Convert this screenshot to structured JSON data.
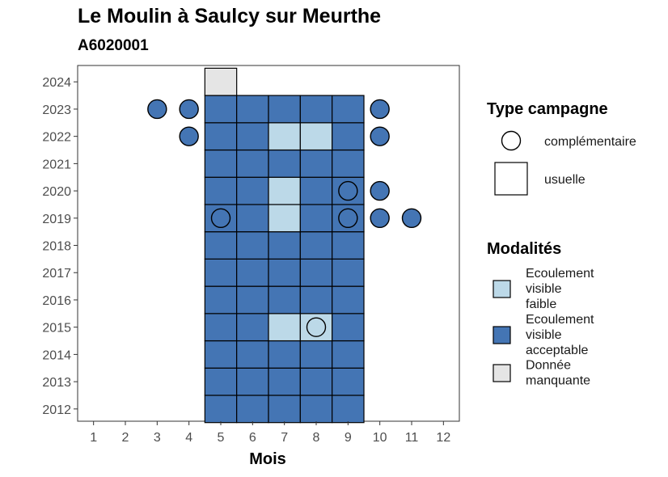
{
  "chart_data": {
    "type": "heatmap",
    "title": "Le Moulin à Saulcy sur Meurthe",
    "subtitle": "A6020001",
    "xlabel": "Mois",
    "ylabel": "",
    "x_ticks": [
      1,
      2,
      3,
      4,
      5,
      6,
      7,
      8,
      9,
      10,
      11,
      12
    ],
    "y_ticks": [
      2012,
      2013,
      2014,
      2015,
      2016,
      2017,
      2018,
      2019,
      2020,
      2021,
      2022,
      2023,
      2024
    ],
    "xlim": [
      0.5,
      12.5
    ],
    "ylim": [
      2011.55,
      2024.6
    ],
    "grid": false,
    "colors": {
      "Ecoulement visible faible": "#bcd9e8",
      "Ecoulement visible acceptable": "#4475b4",
      "Donnée manquante": "#e5e5e5"
    },
    "legend_shape": {
      "title": "Type campagne",
      "entries": [
        {
          "label": "complémentaire",
          "shape": "circle"
        },
        {
          "label": "usuelle",
          "shape": "square"
        }
      ]
    },
    "legend_fill": {
      "title": "Modalités",
      "entries": [
        {
          "lines": [
            "Ecoulement",
            "visible",
            "faible"
          ],
          "key": "Ecoulement visible faible"
        },
        {
          "lines": [
            "Ecoulement",
            "visible",
            "acceptable"
          ],
          "key": "Ecoulement visible acceptable"
        },
        {
          "lines": [
            "Donnée",
            "manquante"
          ],
          "key": "Donnée manquante"
        }
      ]
    },
    "usuelle": [
      {
        "year": 2012,
        "month": 5,
        "modalite": "Ecoulement visible acceptable"
      },
      {
        "year": 2012,
        "month": 6,
        "modalite": "Ecoulement visible acceptable"
      },
      {
        "year": 2012,
        "month": 7,
        "modalite": "Ecoulement visible acceptable"
      },
      {
        "year": 2012,
        "month": 8,
        "modalite": "Ecoulement visible acceptable"
      },
      {
        "year": 2012,
        "month": 9,
        "modalite": "Ecoulement visible acceptable"
      },
      {
        "year": 2013,
        "month": 5,
        "modalite": "Ecoulement visible acceptable"
      },
      {
        "year": 2013,
        "month": 6,
        "modalite": "Ecoulement visible acceptable"
      },
      {
        "year": 2013,
        "month": 7,
        "modalite": "Ecoulement visible acceptable"
      },
      {
        "year": 2013,
        "month": 8,
        "modalite": "Ecoulement visible acceptable"
      },
      {
        "year": 2013,
        "month": 9,
        "modalite": "Ecoulement visible acceptable"
      },
      {
        "year": 2014,
        "month": 5,
        "modalite": "Ecoulement visible acceptable"
      },
      {
        "year": 2014,
        "month": 6,
        "modalite": "Ecoulement visible acceptable"
      },
      {
        "year": 2014,
        "month": 7,
        "modalite": "Ecoulement visible acceptable"
      },
      {
        "year": 2014,
        "month": 8,
        "modalite": "Ecoulement visible acceptable"
      },
      {
        "year": 2014,
        "month": 9,
        "modalite": "Ecoulement visible acceptable"
      },
      {
        "year": 2015,
        "month": 5,
        "modalite": "Ecoulement visible acceptable"
      },
      {
        "year": 2015,
        "month": 6,
        "modalite": "Ecoulement visible acceptable"
      },
      {
        "year": 2015,
        "month": 7,
        "modalite": "Ecoulement visible faible"
      },
      {
        "year": 2015,
        "month": 8,
        "modalite": "Ecoulement visible faible"
      },
      {
        "year": 2015,
        "month": 9,
        "modalite": "Ecoulement visible acceptable"
      },
      {
        "year": 2016,
        "month": 5,
        "modalite": "Ecoulement visible acceptable"
      },
      {
        "year": 2016,
        "month": 6,
        "modalite": "Ecoulement visible acceptable"
      },
      {
        "year": 2016,
        "month": 7,
        "modalite": "Ecoulement visible acceptable"
      },
      {
        "year": 2016,
        "month": 8,
        "modalite": "Ecoulement visible acceptable"
      },
      {
        "year": 2016,
        "month": 9,
        "modalite": "Ecoulement visible acceptable"
      },
      {
        "year": 2017,
        "month": 5,
        "modalite": "Ecoulement visible acceptable"
      },
      {
        "year": 2017,
        "month": 6,
        "modalite": "Ecoulement visible acceptable"
      },
      {
        "year": 2017,
        "month": 7,
        "modalite": "Ecoulement visible acceptable"
      },
      {
        "year": 2017,
        "month": 8,
        "modalite": "Ecoulement visible acceptable"
      },
      {
        "year": 2017,
        "month": 9,
        "modalite": "Ecoulement visible acceptable"
      },
      {
        "year": 2018,
        "month": 5,
        "modalite": "Ecoulement visible acceptable"
      },
      {
        "year": 2018,
        "month": 6,
        "modalite": "Ecoulement visible acceptable"
      },
      {
        "year": 2018,
        "month": 7,
        "modalite": "Ecoulement visible acceptable"
      },
      {
        "year": 2018,
        "month": 8,
        "modalite": "Ecoulement visible acceptable"
      },
      {
        "year": 2018,
        "month": 9,
        "modalite": "Ecoulement visible acceptable"
      },
      {
        "year": 2019,
        "month": 5,
        "modalite": "Ecoulement visible acceptable"
      },
      {
        "year": 2019,
        "month": 6,
        "modalite": "Ecoulement visible acceptable"
      },
      {
        "year": 2019,
        "month": 7,
        "modalite": "Ecoulement visible faible"
      },
      {
        "year": 2019,
        "month": 8,
        "modalite": "Ecoulement visible acceptable"
      },
      {
        "year": 2019,
        "month": 9,
        "modalite": "Ecoulement visible acceptable"
      },
      {
        "year": 2020,
        "month": 5,
        "modalite": "Ecoulement visible acceptable"
      },
      {
        "year": 2020,
        "month": 6,
        "modalite": "Ecoulement visible acceptable"
      },
      {
        "year": 2020,
        "month": 7,
        "modalite": "Ecoulement visible faible"
      },
      {
        "year": 2020,
        "month": 8,
        "modalite": "Ecoulement visible acceptable"
      },
      {
        "year": 2020,
        "month": 9,
        "modalite": "Ecoulement visible acceptable"
      },
      {
        "year": 2021,
        "month": 5,
        "modalite": "Ecoulement visible acceptable"
      },
      {
        "year": 2021,
        "month": 6,
        "modalite": "Ecoulement visible acceptable"
      },
      {
        "year": 2021,
        "month": 7,
        "modalite": "Ecoulement visible acceptable"
      },
      {
        "year": 2021,
        "month": 8,
        "modalite": "Ecoulement visible acceptable"
      },
      {
        "year": 2021,
        "month": 9,
        "modalite": "Ecoulement visible acceptable"
      },
      {
        "year": 2022,
        "month": 5,
        "modalite": "Ecoulement visible acceptable"
      },
      {
        "year": 2022,
        "month": 6,
        "modalite": "Ecoulement visible acceptable"
      },
      {
        "year": 2022,
        "month": 7,
        "modalite": "Ecoulement visible faible"
      },
      {
        "year": 2022,
        "month": 8,
        "modalite": "Ecoulement visible faible"
      },
      {
        "year": 2022,
        "month": 9,
        "modalite": "Ecoulement visible acceptable"
      },
      {
        "year": 2023,
        "month": 5,
        "modalite": "Ecoulement visible acceptable"
      },
      {
        "year": 2023,
        "month": 6,
        "modalite": "Ecoulement visible acceptable"
      },
      {
        "year": 2023,
        "month": 7,
        "modalite": "Ecoulement visible acceptable"
      },
      {
        "year": 2023,
        "month": 8,
        "modalite": "Ecoulement visible acceptable"
      },
      {
        "year": 2023,
        "month": 9,
        "modalite": "Ecoulement visible acceptable"
      },
      {
        "year": 2024,
        "month": 5,
        "modalite": "Donnée manquante"
      }
    ],
    "complementaire": [
      {
        "year": 2023,
        "month": 3,
        "modalite": "Ecoulement visible acceptable"
      },
      {
        "year": 2023,
        "month": 4,
        "modalite": "Ecoulement visible acceptable"
      },
      {
        "year": 2023,
        "month": 10,
        "modalite": "Ecoulement visible acceptable"
      },
      {
        "year": 2022,
        "month": 4,
        "modalite": "Ecoulement visible acceptable"
      },
      {
        "year": 2022,
        "month": 10,
        "modalite": "Ecoulement visible acceptable"
      },
      {
        "year": 2020,
        "month": 9,
        "modalite": "Ecoulement visible acceptable"
      },
      {
        "year": 2020,
        "month": 10,
        "modalite": "Ecoulement visible acceptable"
      },
      {
        "year": 2019,
        "month": 5,
        "modalite": "Ecoulement visible acceptable"
      },
      {
        "year": 2019,
        "month": 9,
        "modalite": "Ecoulement visible acceptable"
      },
      {
        "year": 2019,
        "month": 10,
        "modalite": "Ecoulement visible acceptable"
      },
      {
        "year": 2019,
        "month": 11,
        "modalite": "Ecoulement visible acceptable"
      },
      {
        "year": 2015,
        "month": 8,
        "modalite": "Ecoulement visible faible"
      }
    ]
  }
}
